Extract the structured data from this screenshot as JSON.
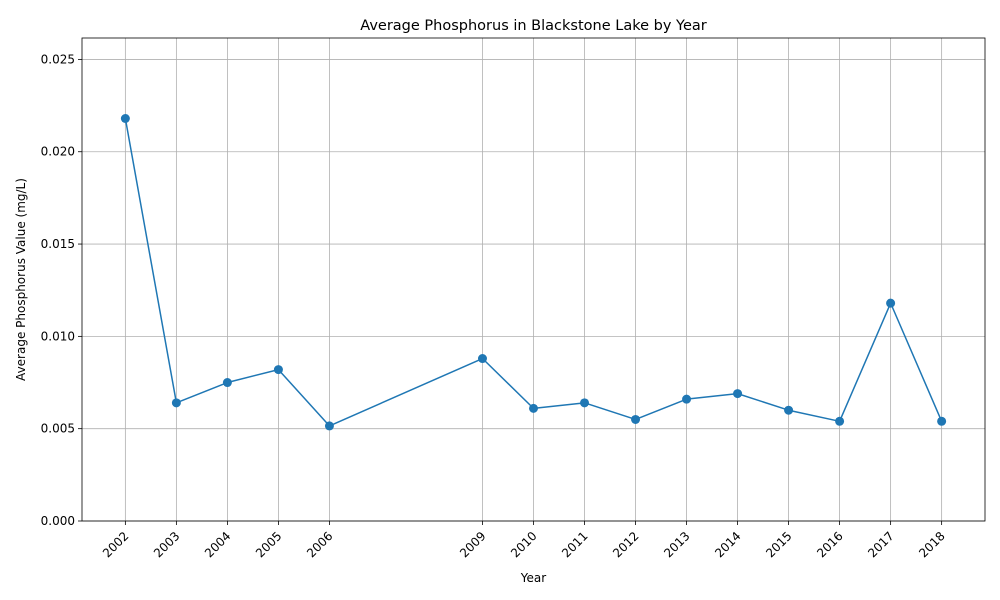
{
  "chart_data": {
    "type": "line",
    "title": "Average Phosphorus in Blackstone Lake by Year",
    "xlabel": "Year",
    "ylabel": "Average Phosphorus Value (mg/L)",
    "x": [
      2002,
      2003,
      2004,
      2005,
      2006,
      2009,
      2010,
      2011,
      2012,
      2013,
      2014,
      2015,
      2016,
      2017,
      2018
    ],
    "x_tick_labels": [
      "2002",
      "2003",
      "2004",
      "2005",
      "2006",
      "2009",
      "2010",
      "2011",
      "2012",
      "2013",
      "2014",
      "2015",
      "2016",
      "2017",
      "2018"
    ],
    "series": [
      {
        "values": [
          0.0218,
          0.0064,
          0.0075,
          0.0082,
          0.00515,
          0.0088,
          0.0061,
          0.0064,
          0.0055,
          0.0066,
          0.0069,
          0.006,
          0.0054,
          0.0118,
          0.0054
        ],
        "color": "#1f77b4",
        "marker": "circle"
      }
    ],
    "y_ticks": [
      0,
      0.005,
      0.01,
      0.015,
      0.02,
      0.025
    ],
    "y_tick_labels": [
      "0.000",
      "0.005",
      "0.010",
      "0.015",
      "0.020",
      "0.025"
    ],
    "xlim": [
      2001.15,
      2018.85
    ],
    "ylim": [
      0,
      0.02616
    ],
    "grid": true,
    "x_tick_rotation": 45
  }
}
